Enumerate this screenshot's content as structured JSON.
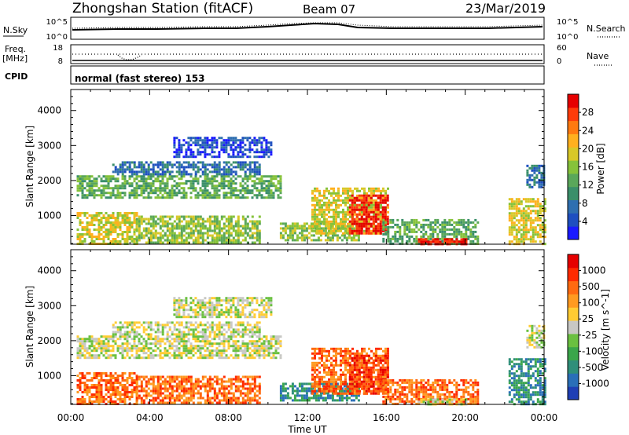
{
  "header": {
    "station": "Zhongshan Station (fitACF)",
    "beam": "Beam 07",
    "date": "23/Mar/2019"
  },
  "noise_panel": {
    "left_label": "N.Sky",
    "left_ticks": [
      "10^5",
      "10^0"
    ],
    "right_ticks": [
      "10^5",
      "10^0"
    ],
    "right_label": "N.Search"
  },
  "freq_panel": {
    "left_label_line1": "Freq.",
    "left_label_line2": "[MHz]",
    "left_ticks": [
      "18",
      "8"
    ],
    "right_ticks": [
      "60",
      "0"
    ],
    "right_label": "Nave"
  },
  "cpid_panel": {
    "label": "CPID",
    "text": "normal (fast stereo) 153"
  },
  "x_axis": {
    "label": "Time UT",
    "ticks": [
      "00:00",
      "04:00",
      "08:00",
      "12:00",
      "16:00",
      "20:00",
      "00:00"
    ]
  },
  "chart_data": [
    {
      "type": "heatmap",
      "panel": "power",
      "ylabel": "Slant Range [km]",
      "y_ticks": [
        1000,
        2000,
        3000,
        4000
      ],
      "ylim": [
        180,
        4600
      ],
      "xlim_hours": [
        0,
        24
      ],
      "colorbar": {
        "label": "Power [dB]",
        "ticks": [
          "4",
          "8",
          "12",
          "16",
          "20",
          "24",
          "28"
        ],
        "colors": [
          "#1a1aff",
          "#1e4fc0",
          "#2f6fb0",
          "#3a8f6a",
          "#5aa75a",
          "#86c23a",
          "#d8c828",
          "#ffb01e",
          "#ff7a10",
          "#ff3c0a",
          "#e60000"
        ]
      },
      "regions": [
        {
          "t": [
            0.3,
            10.6
          ],
          "r": [
            1500,
            2150
          ],
          "level": 4
        },
        {
          "t": [
            0.3,
            3.3
          ],
          "r": [
            200,
            1100
          ],
          "level": 6
        },
        {
          "t": [
            3.3,
            9.6
          ],
          "r": [
            200,
            1000
          ],
          "level": 5
        },
        {
          "t": [
            2.1,
            9.6
          ],
          "r": [
            2150,
            2550
          ],
          "level": 2
        },
        {
          "t": [
            5.2,
            10.2
          ],
          "r": [
            2700,
            3250
          ],
          "level": 1
        },
        {
          "t": [
            10.6,
            14.6
          ],
          "r": [
            300,
            800
          ],
          "level": 5
        },
        {
          "t": [
            12.2,
            16.1
          ],
          "r": [
            500,
            1800
          ],
          "level": 6
        },
        {
          "t": [
            14.1,
            16.1
          ],
          "r": [
            500,
            1600
          ],
          "level": 10
        },
        {
          "t": [
            15.8,
            20.6
          ],
          "r": [
            200,
            900
          ],
          "level": 4
        },
        {
          "t": [
            17.6,
            20.1
          ],
          "r": [
            200,
            350
          ],
          "level": 10
        },
        {
          "t": [
            22.2,
            24.0
          ],
          "r": [
            200,
            1500
          ],
          "level": 6
        },
        {
          "t": [
            23.1,
            24.0
          ],
          "r": [
            1800,
            2450
          ],
          "level": 2
        }
      ]
    },
    {
      "type": "heatmap",
      "panel": "velocity",
      "ylabel": "Slant Range [km]",
      "y_ticks": [
        1000,
        2000,
        3000,
        4000
      ],
      "ylim": [
        180,
        4600
      ],
      "xlim_hours": [
        0,
        24
      ],
      "colorbar": {
        "label": "Velocity [m s^-1]",
        "ticks": [
          "1000",
          "500",
          "100",
          "25",
          "-25",
          "-100",
          "-500",
          "-1000"
        ],
        "colors": [
          "#1f3fb4",
          "#2a6fb8",
          "#2f8f7a",
          "#3aa64a",
          "#6ac040",
          "#c8c8c4",
          "#ffcc33",
          "#ff9a20",
          "#ff6a10",
          "#ff2a00",
          "#e60000"
        ]
      },
      "regions": [
        {
          "t": [
            0.3,
            10.6
          ],
          "r": [
            1500,
            2150
          ],
          "level": 5
        },
        {
          "t": [
            0.3,
            3.3
          ],
          "r": [
            200,
            1100
          ],
          "level": 8
        },
        {
          "t": [
            3.3,
            9.6
          ],
          "r": [
            200,
            1000
          ],
          "level": 8
        },
        {
          "t": [
            2.1,
            9.6
          ],
          "r": [
            2150,
            2550
          ],
          "level": 5
        },
        {
          "t": [
            5.2,
            10.2
          ],
          "r": [
            2700,
            3250
          ],
          "level": 5
        },
        {
          "t": [
            10.6,
            14.6
          ],
          "r": [
            300,
            800
          ],
          "level": 2
        },
        {
          "t": [
            12.2,
            16.1
          ],
          "r": [
            500,
            1800
          ],
          "level": 8
        },
        {
          "t": [
            14.1,
            16.1
          ],
          "r": [
            500,
            1600
          ],
          "level": 9
        },
        {
          "t": [
            15.8,
            20.6
          ],
          "r": [
            200,
            900
          ],
          "level": 8
        },
        {
          "t": [
            17.6,
            20.1
          ],
          "r": [
            200,
            350
          ],
          "level": 5
        },
        {
          "t": [
            22.2,
            24.0
          ],
          "r": [
            200,
            1500
          ],
          "level": 2
        },
        {
          "t": [
            23.1,
            24.0
          ],
          "r": [
            1800,
            2450
          ],
          "level": 5
        }
      ]
    }
  ]
}
